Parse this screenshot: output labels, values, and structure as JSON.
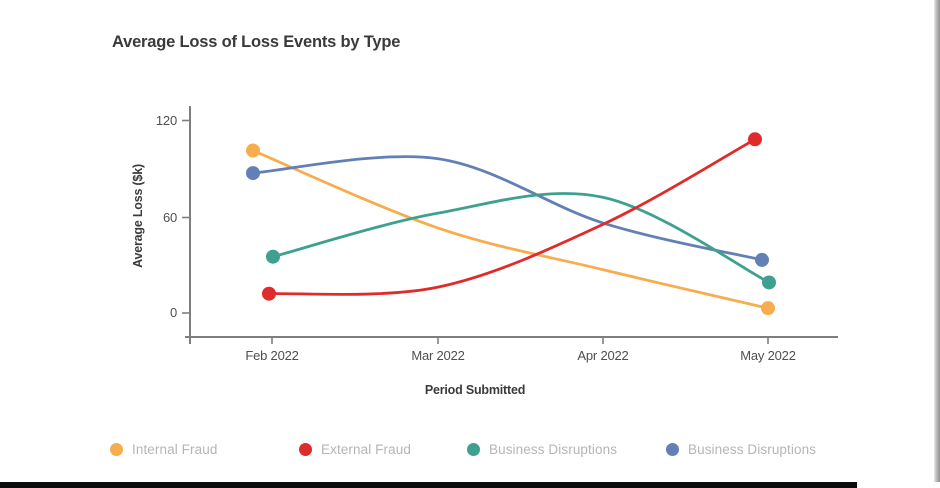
{
  "title": "Average Loss of Loss Events by Type",
  "chart_data": {
    "type": "line",
    "title": "Average Loss of Loss Events by Type",
    "xlabel": "Period Submitted",
    "ylabel": "Average Loss ($k)",
    "x_ticks": [
      "Feb 2022",
      "Mar 2022",
      "Apr 2022",
      "May 2022"
    ],
    "y_ticks": [
      "120",
      "60",
      "0"
    ],
    "y_tick_values": [
      120,
      60,
      0
    ],
    "ylim": [
      0,
      120
    ],
    "grid": false,
    "line_style": "smooth-spline",
    "markers": "endpoints-only",
    "legend_position": "bottom",
    "axis_color": "#7e7e7e",
    "series": [
      {
        "name": "Internal Fraud",
        "color": "#F7AC4D",
        "values": [
          101,
          53,
          27,
          3
        ]
      },
      {
        "name": "External Fraud",
        "color": "#E02B2B",
        "values": [
          12,
          16,
          55,
          108
        ]
      },
      {
        "name": "Business Disruptions",
        "color": "#3EA18F",
        "values": [
          35,
          62,
          72,
          19
        ]
      },
      {
        "name": "Business Disruptions",
        "color": "#6380B6",
        "values": [
          87,
          96,
          56,
          33
        ]
      }
    ]
  }
}
